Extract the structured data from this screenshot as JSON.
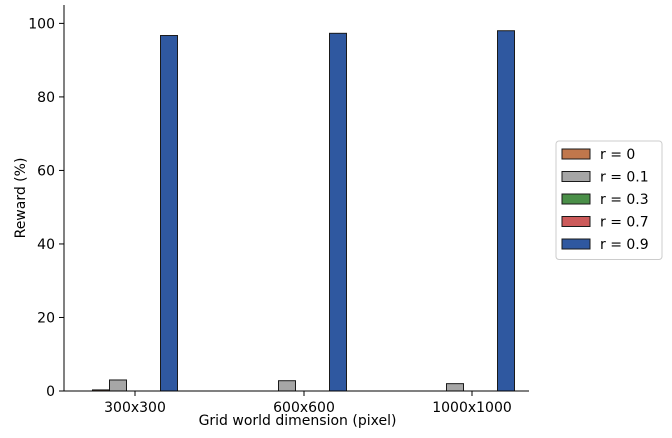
{
  "chart_data": {
    "type": "bar",
    "xlabel": "Grid world dimension (pixel)",
    "ylabel": "Reward (%)",
    "ylim": [
      0,
      105
    ],
    "yticks": [
      0,
      20,
      40,
      60,
      80,
      100
    ],
    "categories": [
      "300x300",
      "600x600",
      "1000x1000"
    ],
    "legend_position": "right",
    "series": [
      {
        "name": "r = 0",
        "color": "#c0774c",
        "values": [
          0.3,
          0.0,
          0.0
        ]
      },
      {
        "name": "r = 0.1",
        "color": "#a6a6a6",
        "values": [
          3.0,
          2.8,
          2.0
        ]
      },
      {
        "name": "r = 0.3",
        "color": "#4a8f48",
        "values": [
          0.0,
          0.0,
          0.0
        ]
      },
      {
        "name": "r = 0.7",
        "color": "#cc5a5a",
        "values": [
          0.0,
          0.0,
          0.0
        ]
      },
      {
        "name": "r = 0.9",
        "color": "#2f58a0",
        "values": [
          96.7,
          97.3,
          98.0
        ]
      }
    ]
  }
}
